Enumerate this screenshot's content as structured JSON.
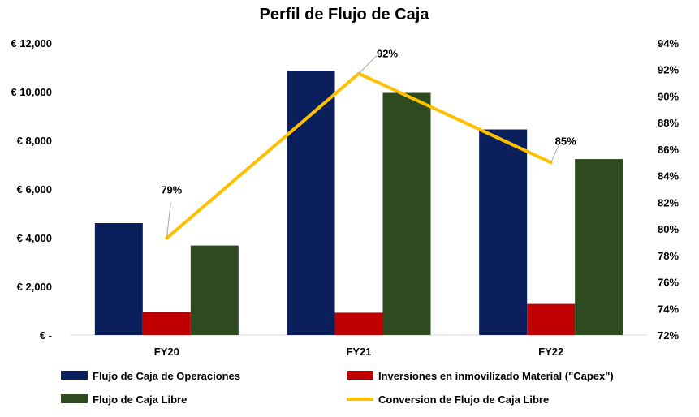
{
  "chart_data": {
    "type": "bar",
    "title": "Perfil de Flujo de Caja",
    "categories": [
      "FY20",
      "FY21",
      "FY22"
    ],
    "series": [
      {
        "name": "Flujo de Caja de Operaciones",
        "type": "bar",
        "axis": "left",
        "color": "#0B1F5C",
        "values": [
          4600,
          10850,
          8450
        ]
      },
      {
        "name": "Inversiones en inmovilizado Material (\"Capex\")",
        "type": "bar",
        "axis": "left",
        "color": "#C00000",
        "values": [
          950,
          920,
          1280
        ]
      },
      {
        "name": "Flujo de Caja Libre",
        "type": "bar",
        "axis": "left",
        "color": "#2E4A1F",
        "values": [
          3680,
          9950,
          7230
        ]
      },
      {
        "name": "Conversion de Flujo de Caja Libre",
        "type": "line",
        "axis": "right",
        "color": "#FFC000",
        "values": [
          79.3,
          91.7,
          85.0
        ],
        "labels": [
          "79%",
          "92%",
          "85%"
        ]
      }
    ],
    "y_left": {
      "min": 0,
      "max": 12000,
      "ticks": [
        0,
        2000,
        4000,
        6000,
        8000,
        10000,
        12000
      ],
      "tick_labels": [
        "€ -",
        "€ 2,000",
        "€ 4,000",
        "€ 6,000",
        "€ 8,000",
        "€ 10,000",
        "€ 12,000"
      ]
    },
    "y_right": {
      "min": 72,
      "max": 94,
      "ticks": [
        72,
        74,
        76,
        78,
        80,
        82,
        84,
        86,
        88,
        90,
        92,
        94
      ],
      "tick_labels": [
        "72%",
        "74%",
        "76%",
        "78%",
        "80%",
        "82%",
        "84%",
        "86%",
        "88%",
        "90%",
        "92%",
        "94%"
      ]
    },
    "grid": false,
    "legend_position": "bottom"
  }
}
